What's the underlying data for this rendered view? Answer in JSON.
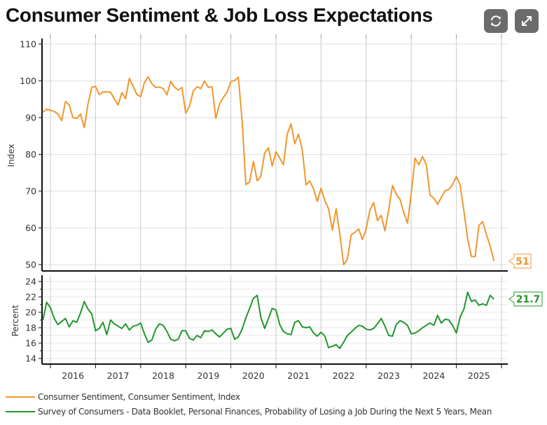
{
  "header": {
    "title": "Consumer Sentiment & Job Loss Expectations",
    "refresh_icon": "refresh-icon",
    "expand_icon": "expand-icon"
  },
  "colors": {
    "sentiment": "#f0962e",
    "job_loss": "#22962e",
    "tool_button": "#6b6b6b"
  },
  "legend": [
    {
      "label": "Consumer Sentiment, Consumer Sentiment, Index",
      "color": "#f0962e"
    },
    {
      "label": "Survey of Consumers - Data Booklet, Personal Finances, Probability of Losing a Job During the Next 5 Years, Mean",
      "color": "#22962e"
    }
  ],
  "chart_data": [
    {
      "type": "line",
      "title": "Consumer Sentiment & Job Loss Expectations",
      "panel": "top",
      "name": "Consumer Sentiment, Consumer Sentiment, Index",
      "ylabel": "Index",
      "xlabel": "",
      "ylim": [
        48,
        112
      ],
      "yticks": [
        50,
        60,
        70,
        80,
        90,
        100,
        110
      ],
      "x_start": "2015-11",
      "x_end": "2025-11",
      "x_frequency": "monthly",
      "xticks": [
        "2016",
        "2017",
        "2018",
        "2019",
        "2020",
        "2021",
        "2022",
        "2023",
        "2024",
        "2025"
      ],
      "grid": true,
      "last_value_label": "51",
      "values": [
        91.5,
        92.3,
        92.0,
        91.7,
        91.0,
        89.2,
        94.4,
        93.4,
        90.0,
        89.8,
        91.0,
        87.3,
        93.8,
        98.2,
        98.5,
        96.3,
        97.0,
        97.0,
        96.9,
        95.1,
        93.4,
        96.8,
        95.1,
        100.7,
        98.5,
        96.3,
        95.7,
        99.5,
        101.1,
        99.2,
        98.2,
        98.3,
        97.9,
        96.2,
        99.9,
        98.3,
        97.5,
        98.2,
        91.2,
        93.2,
        97.2,
        98.4,
        97.9,
        100.0,
        98.2,
        98.4,
        89.8,
        93.8,
        95.5,
        96.9,
        99.8,
        100.1,
        101.0,
        89.1,
        71.8,
        72.5,
        78.1,
        72.8,
        74.1,
        80.4,
        81.8,
        76.8,
        80.7,
        79.0,
        77.2,
        85.5,
        88.3,
        82.9,
        85.5,
        81.2,
        71.7,
        72.8,
        70.6,
        67.2,
        70.8,
        67.4,
        65.2,
        59.4,
        65.2,
        58.4,
        50.0,
        51.5,
        58.1,
        58.8,
        59.7,
        56.8,
        59.7,
        64.9,
        66.9,
        62.0,
        63.4,
        59.2,
        64.9,
        71.5,
        69.2,
        67.8,
        64.2,
        61.3,
        69.4,
        79.0,
        77.2,
        79.4,
        77.2,
        68.9,
        68.1,
        66.4,
        68.3,
        70.1,
        70.5,
        71.8,
        74.0,
        71.7,
        64.7,
        57.0,
        52.2,
        52.2,
        60.7,
        61.7,
        58.2,
        55.1,
        51.0
      ]
    },
    {
      "type": "line",
      "panel": "bottom",
      "name": "Survey of Consumers - Data Booklet, Personal Finances, Probability of Losing a Job During the Next 5 Years, Mean",
      "ylabel": "Percent",
      "xlabel": "",
      "ylim": [
        13.2,
        25
      ],
      "yticks": [
        14,
        16,
        18,
        20,
        22,
        24
      ],
      "minor_grid_step": 1,
      "x_start": "2015-11",
      "x_end": "2025-11",
      "x_frequency": "monthly",
      "xticks": [
        "2016",
        "2017",
        "2018",
        "2019",
        "2020",
        "2021",
        "2022",
        "2023",
        "2024",
        "2025"
      ],
      "grid": true,
      "last_value_label": "21.7",
      "values": [
        19.0,
        21.3,
        20.6,
        19.2,
        18.4,
        18.8,
        19.2,
        18.1,
        18.9,
        18.7,
        19.9,
        21.4,
        20.4,
        19.8,
        17.6,
        17.9,
        18.7,
        17.1,
        19.0,
        18.5,
        18.2,
        17.9,
        18.5,
        17.7,
        18.2,
        18.3,
        18.6,
        17.2,
        16.1,
        16.4,
        17.8,
        18.5,
        18.3,
        17.5,
        16.5,
        16.3,
        16.5,
        17.6,
        17.6,
        16.6,
        16.4,
        17.0,
        16.7,
        17.6,
        17.5,
        17.7,
        17.2,
        16.8,
        17.3,
        17.8,
        17.9,
        16.5,
        16.8,
        17.8,
        19.3,
        20.5,
        21.8,
        22.2,
        19.3,
        17.9,
        19.2,
        20.5,
        20.3,
        18.4,
        17.5,
        17.2,
        17.1,
        18.7,
        18.9,
        18.1,
        18.0,
        18.1,
        17.3,
        16.9,
        17.4,
        16.9,
        15.4,
        15.6,
        15.8,
        15.3,
        16.1,
        17.0,
        17.4,
        17.9,
        18.3,
        18.2,
        17.8,
        17.7,
        17.9,
        18.5,
        19.2,
        18.2,
        17.0,
        16.9,
        18.4,
        18.9,
        18.7,
        18.3,
        17.2,
        17.3,
        17.6,
        18.0,
        18.3,
        18.6,
        18.3,
        19.6,
        18.6,
        19.1,
        19.0,
        18.3,
        17.3,
        19.4,
        20.4,
        22.6,
        21.4,
        21.6,
        20.9,
        21.1,
        20.9,
        22.2,
        21.7
      ]
    }
  ]
}
